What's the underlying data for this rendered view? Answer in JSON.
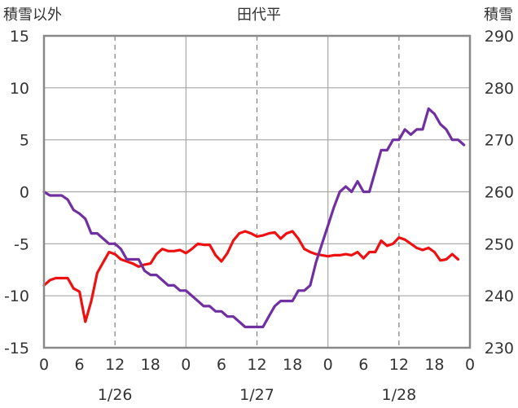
{
  "chart_data": {
    "type": "line",
    "title": "田代平",
    "left_axis_label": "積雪以外",
    "right_axis_label": "積雪",
    "left_ylim": [
      -15,
      15
    ],
    "left_ticks": [
      15,
      10,
      5,
      0,
      -5,
      -10,
      -15
    ],
    "right_ylim": [
      230,
      290
    ],
    "right_ticks": [
      290,
      280,
      270,
      260,
      250,
      240,
      230
    ],
    "x_range_hours": [
      0,
      72
    ],
    "x_tick_labels": [
      "0",
      "6",
      "12",
      "18",
      "0",
      "6",
      "12",
      "18",
      "0",
      "6",
      "12",
      "18",
      "0"
    ],
    "date_labels": [
      {
        "label": "1/26",
        "center_hour": 12
      },
      {
        "label": "1/27",
        "center_hour": 36
      },
      {
        "label": "1/28",
        "center_hour": 60
      }
    ],
    "grid": {
      "major_solid_every_hours": 24,
      "dashed_every_hours": 12
    },
    "series": [
      {
        "axis": "left",
        "color": "#ee1111",
        "points": [
          [
            0,
            -9
          ],
          [
            1,
            -8.5
          ],
          [
            2,
            -8.3
          ],
          [
            3,
            -8.3
          ],
          [
            4,
            -8.3
          ],
          [
            5,
            -9.3
          ],
          [
            6,
            -9.6
          ],
          [
            7,
            -12.5
          ],
          [
            8,
            -10.5
          ],
          [
            9,
            -7.8
          ],
          [
            10,
            -6.8
          ],
          [
            11,
            -5.8
          ],
          [
            12,
            -6
          ],
          [
            13,
            -6.5
          ],
          [
            14,
            -6.7
          ],
          [
            15,
            -6.9
          ],
          [
            16,
            -7.2
          ],
          [
            17,
            -7
          ],
          [
            18,
            -6.9
          ],
          [
            19,
            -6
          ],
          [
            20,
            -5.5
          ],
          [
            21,
            -5.7
          ],
          [
            22,
            -5.7
          ],
          [
            23,
            -5.6
          ],
          [
            24,
            -5.9
          ],
          [
            25,
            -5.5
          ],
          [
            26,
            -5
          ],
          [
            27,
            -5.1
          ],
          [
            28,
            -5.1
          ],
          [
            29,
            -6.1
          ],
          [
            30,
            -6.7
          ],
          [
            31,
            -5.9
          ],
          [
            32,
            -4.7
          ],
          [
            33,
            -4
          ],
          [
            34,
            -3.8
          ],
          [
            35,
            -4
          ],
          [
            36,
            -4.3
          ],
          [
            37,
            -4.2
          ],
          [
            38,
            -4
          ],
          [
            39,
            -3.9
          ],
          [
            40,
            -4.5
          ],
          [
            41,
            -4
          ],
          [
            42,
            -3.8
          ],
          [
            43,
            -4.5
          ],
          [
            44,
            -5.5
          ],
          [
            45,
            -5.8
          ],
          [
            46,
            -6
          ],
          [
            47,
            -6.1
          ],
          [
            48,
            -6.2
          ],
          [
            49,
            -6.1
          ],
          [
            50,
            -6.1
          ],
          [
            51,
            -6
          ],
          [
            52,
            -6.1
          ],
          [
            53,
            -5.8
          ],
          [
            54,
            -6.4
          ],
          [
            55,
            -5.8
          ],
          [
            56,
            -5.8
          ],
          [
            57,
            -4.7
          ],
          [
            58,
            -5.2
          ],
          [
            59,
            -5
          ],
          [
            60,
            -4.4
          ],
          [
            61,
            -4.6
          ],
          [
            62,
            -5
          ],
          [
            63,
            -5.4
          ],
          [
            64,
            -5.6
          ],
          [
            65,
            -5.4
          ],
          [
            66,
            -5.8
          ],
          [
            67,
            -6.6
          ],
          [
            68,
            -6.5
          ],
          [
            69,
            -6
          ],
          [
            70,
            -6.5
          ]
        ]
      },
      {
        "axis": "right",
        "color": "#7030a0",
        "points": [
          [
            0,
            260
          ],
          [
            1,
            259.3
          ],
          [
            2,
            259.3
          ],
          [
            3,
            259.3
          ],
          [
            4,
            258.5
          ],
          [
            5,
            256.5
          ],
          [
            6,
            255.8
          ],
          [
            7,
            254.8
          ],
          [
            8,
            252
          ],
          [
            9,
            252
          ],
          [
            10,
            251
          ],
          [
            11,
            250
          ],
          [
            12,
            250
          ],
          [
            13,
            249
          ],
          [
            14,
            247
          ],
          [
            15,
            247
          ],
          [
            16,
            247
          ],
          [
            17,
            244.8
          ],
          [
            18,
            244
          ],
          [
            19,
            244
          ],
          [
            20,
            243
          ],
          [
            21,
            242
          ],
          [
            22,
            242
          ],
          [
            23,
            241
          ],
          [
            24,
            241
          ],
          [
            25,
            240
          ],
          [
            26,
            239
          ],
          [
            27,
            238
          ],
          [
            28,
            238
          ],
          [
            29,
            237
          ],
          [
            30,
            237
          ],
          [
            31,
            236
          ],
          [
            32,
            236
          ],
          [
            33,
            235
          ],
          [
            34,
            234
          ],
          [
            35,
            234
          ],
          [
            36,
            234
          ],
          [
            37,
            234
          ],
          [
            38,
            236
          ],
          [
            39,
            238
          ],
          [
            40,
            239
          ],
          [
            41,
            239
          ],
          [
            42,
            239
          ],
          [
            43,
            241
          ],
          [
            44,
            241
          ],
          [
            45,
            242
          ],
          [
            46,
            246.5
          ],
          [
            47,
            250
          ],
          [
            48,
            253.5
          ],
          [
            49,
            257
          ],
          [
            50,
            260
          ],
          [
            51,
            261
          ],
          [
            52,
            260
          ],
          [
            53,
            262
          ],
          [
            54,
            260
          ],
          [
            55,
            260
          ],
          [
            56,
            264
          ],
          [
            57,
            268
          ],
          [
            58,
            268
          ],
          [
            59,
            270
          ],
          [
            60,
            270
          ],
          [
            61,
            272
          ],
          [
            62,
            271
          ],
          [
            63,
            272
          ],
          [
            64,
            272
          ],
          [
            65,
            276
          ],
          [
            66,
            275
          ],
          [
            67,
            273
          ],
          [
            68,
            272
          ],
          [
            69,
            270
          ],
          [
            70,
            270
          ],
          [
            71,
            269
          ]
        ]
      }
    ]
  }
}
